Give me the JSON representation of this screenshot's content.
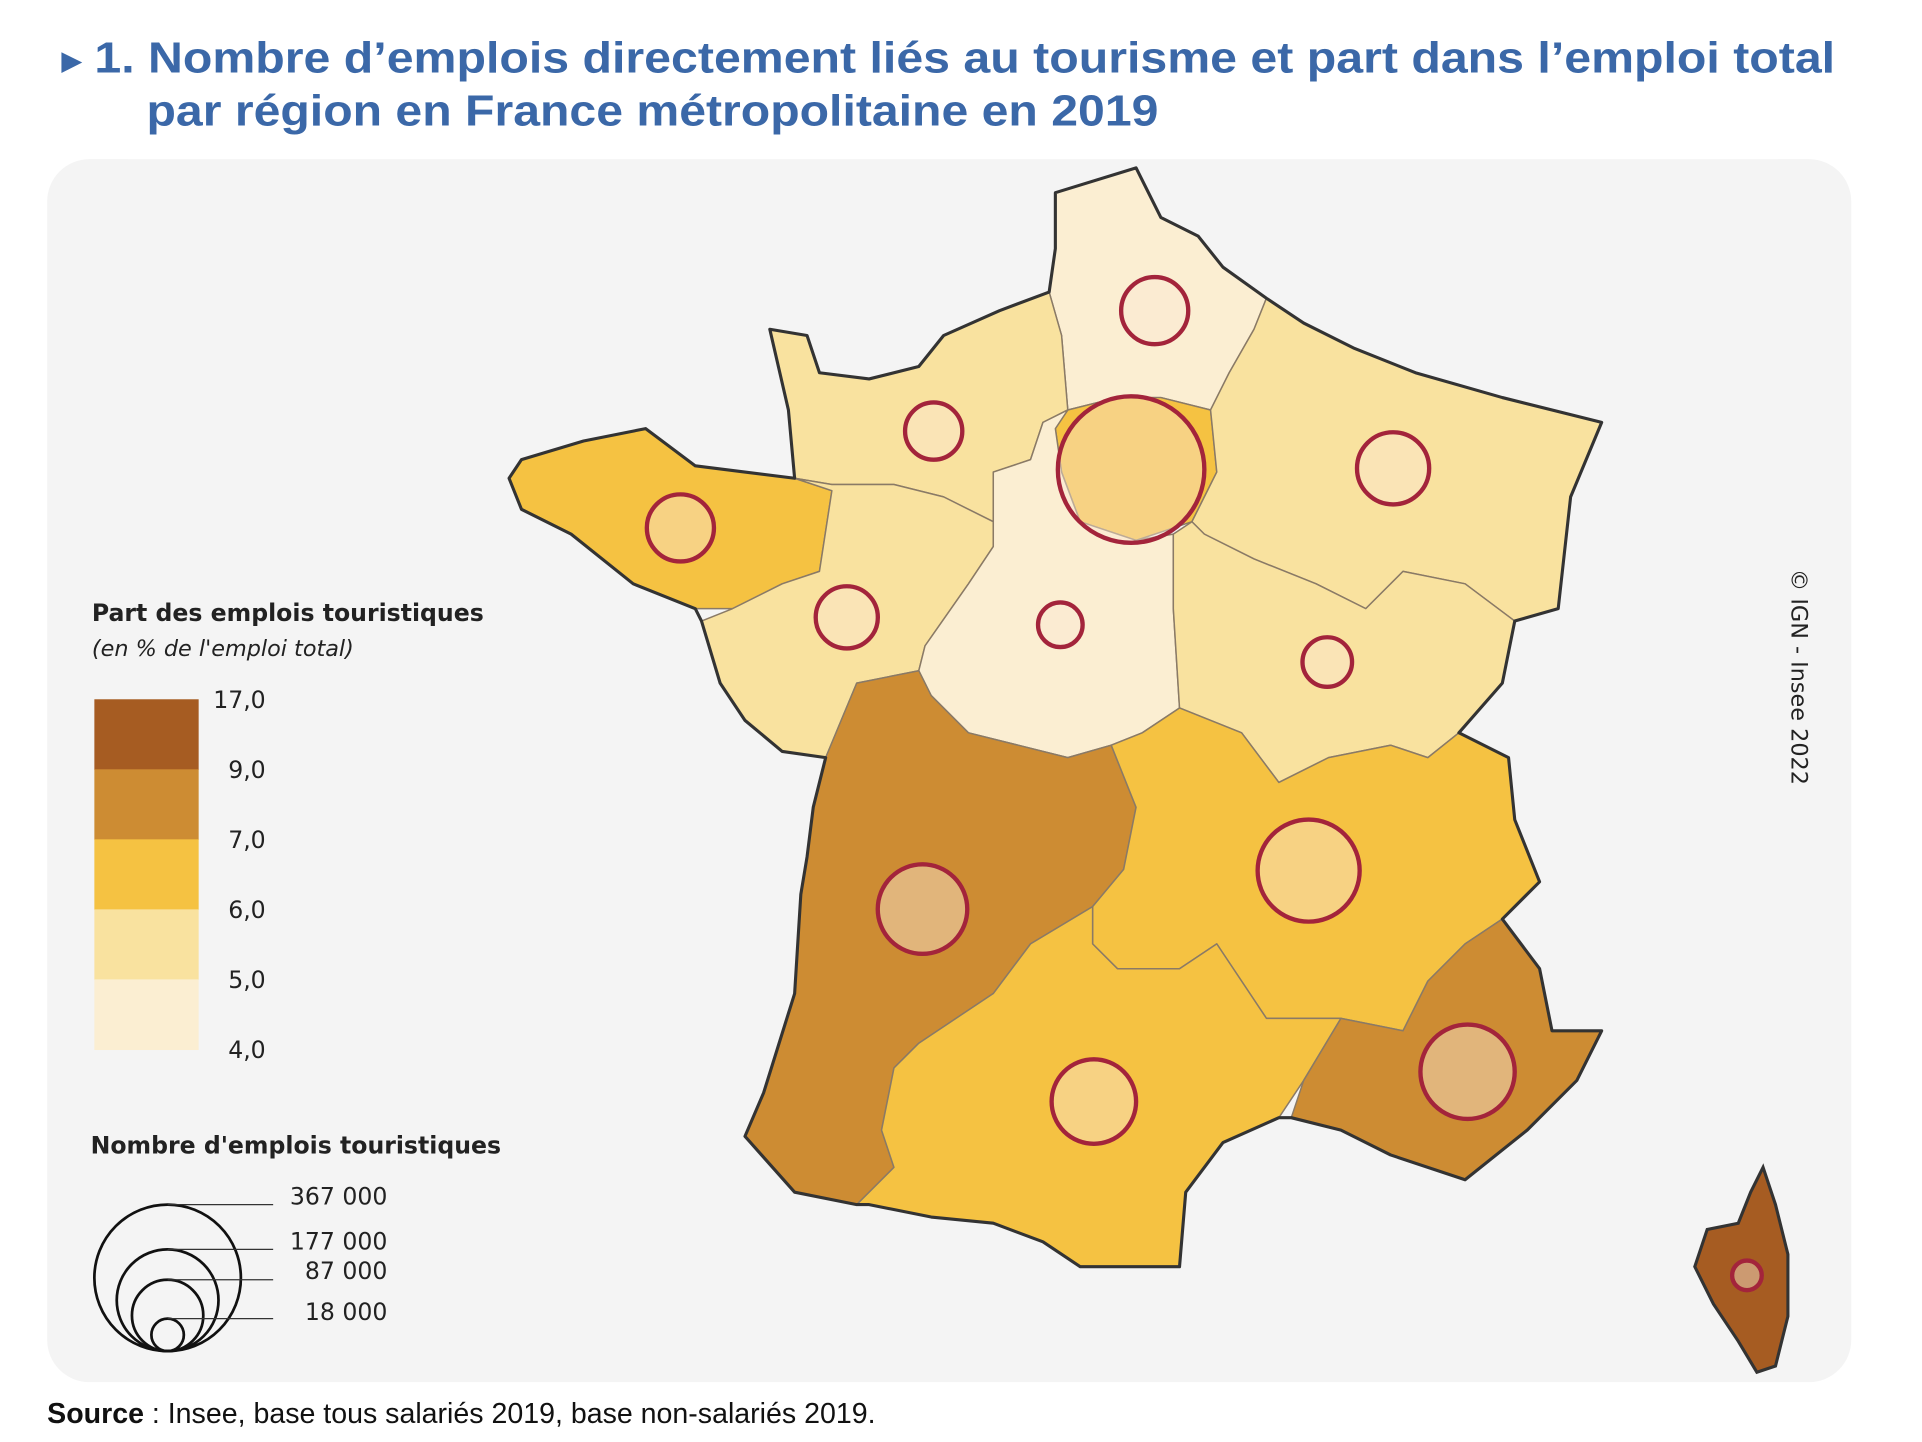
{
  "title": {
    "marker": "►",
    "line1": "1. Nombre d’emplois directement liés au tourisme et part dans l’emploi total",
    "line2": "par région en France métropolitaine en 2019"
  },
  "colors": {
    "title": "#3b68a8",
    "background_panel": "#f4f4f4",
    "border": "#333333",
    "bubble_stroke": "#a3243b",
    "classes": [
      "#fbeed2",
      "#f9e29f",
      "#f5c242",
      "#cd8c33",
      "#a65c22"
    ]
  },
  "legend_share": {
    "title": "Part des emplois touristiques",
    "subtitle": "(en % de l'emploi total)",
    "breaks": [
      "17,0",
      "9,0",
      "7,0",
      "6,0",
      "5,0",
      "4,0"
    ]
  },
  "legend_count": {
    "title": "Nombre d'emplois touristiques",
    "values": [
      367000,
      177000,
      87000,
      18000
    ],
    "labels": [
      "367 000",
      "177 000",
      "87 000",
      "18 000"
    ]
  },
  "copyright": "© IGN - Insee 2022",
  "source": {
    "label": "Source",
    "text": " : Insee, base tous salariés 2019, base non-salariés 2019."
  },
  "regions": [
    {
      "id": "hauts-de-france",
      "class": 0,
      "jobs_est": 77000
    },
    {
      "id": "normandie",
      "class": 1,
      "jobs_est": 56000
    },
    {
      "id": "bretagne",
      "class": 2,
      "jobs_est": 77000
    },
    {
      "id": "pays-de-la-loire",
      "class": 1,
      "jobs_est": 66000
    },
    {
      "id": "ile-de-france",
      "class": 2,
      "jobs_est": 367000
    },
    {
      "id": "centre-val-de-loire",
      "class": 0,
      "jobs_est": 34000
    },
    {
      "id": "grand-est",
      "class": 1,
      "jobs_est": 89000
    },
    {
      "id": "bourgogne-franche-comte",
      "class": 1,
      "jobs_est": 42000
    },
    {
      "id": "nouvelle-aquitaine",
      "class": 3,
      "jobs_est": 137000
    },
    {
      "id": "auvergne-rhone-alpes",
      "class": 2,
      "jobs_est": 178000
    },
    {
      "id": "occitanie",
      "class": 2,
      "jobs_est": 122000
    },
    {
      "id": "provence-alpes-cote-d-azur",
      "class": 3,
      "jobs_est": 152000
    },
    {
      "id": "corse",
      "class": 4,
      "jobs_est": 15000
    }
  ]
}
